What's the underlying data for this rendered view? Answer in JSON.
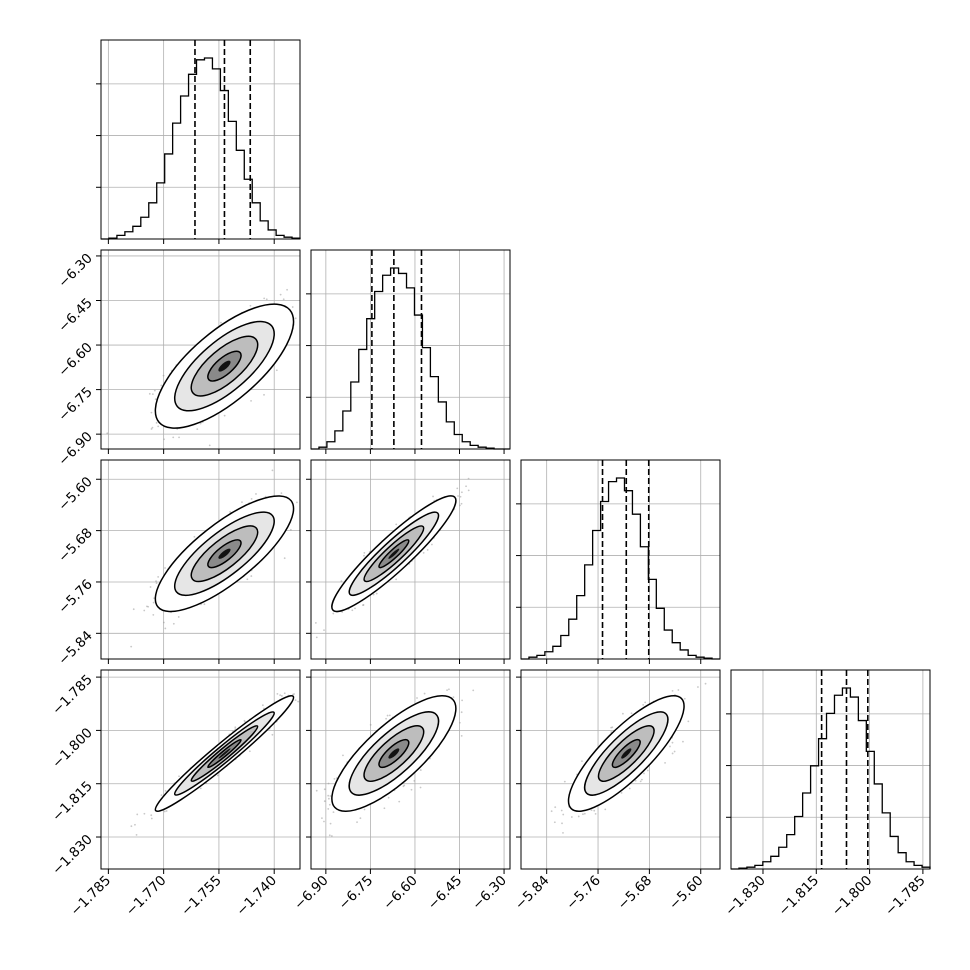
{
  "chart_data": {
    "type": "corner",
    "parameters": [
      {
        "range": [
          -1.787,
          -1.733
        ],
        "ticks": [
          -1.785,
          -1.77,
          -1.755,
          -1.74
        ],
        "tick_labels": [
          "−1.785",
          "−1.770",
          "−1.755",
          "−1.740"
        ],
        "quantiles": [
          -1.7615,
          -1.7535,
          -1.7465
        ],
        "hist": [
          0,
          0.005,
          0.02,
          0.04,
          0.07,
          0.12,
          0.2,
          0.31,
          0.47,
          0.64,
          0.79,
          0.91,
          0.99,
          1.0,
          0.94,
          0.82,
          0.65,
          0.49,
          0.33,
          0.2,
          0.1,
          0.05,
          0.02,
          0.01,
          0.005
        ]
      },
      {
        "range": [
          -6.95,
          -6.28
        ],
        "ticks": [
          -6.9,
          -6.75,
          -6.6,
          -6.45,
          -6.3
        ],
        "tick_labels": [
          "−6.90",
          "−6.75",
          "−6.60",
          "−6.45",
          "−6.30"
        ],
        "quantiles": [
          -6.745,
          -6.671,
          -6.578
        ],
        "hist": [
          0,
          0.01,
          0.04,
          0.1,
          0.21,
          0.37,
          0.55,
          0.72,
          0.87,
          0.96,
          1.0,
          0.97,
          0.89,
          0.74,
          0.56,
          0.4,
          0.26,
          0.15,
          0.08,
          0.04,
          0.02,
          0.01,
          0.005,
          0,
          0
        ]
      },
      {
        "range": [
          -5.88,
          -5.57
        ],
        "ticks": [
          -5.84,
          -5.76,
          -5.68,
          -5.6
        ],
        "tick_labels": [
          "−5.84",
          "−5.76",
          "−5.68",
          "−5.60"
        ],
        "quantiles": [
          -5.753,
          -5.716,
          -5.681
        ],
        "hist": [
          0,
          0.01,
          0.02,
          0.04,
          0.07,
          0.13,
          0.22,
          0.35,
          0.52,
          0.71,
          0.87,
          0.98,
          1.0,
          0.93,
          0.8,
          0.62,
          0.44,
          0.28,
          0.16,
          0.09,
          0.05,
          0.02,
          0.01,
          0.005,
          0
        ]
      },
      {
        "range": [
          -1.839,
          -1.783
        ],
        "ticks": [
          -1.83,
          -1.815,
          -1.8,
          -1.785
        ],
        "tick_labels": [
          "−1.830",
          "−1.815",
          "−1.800",
          "−1.785"
        ],
        "quantiles": [
          -1.8135,
          -1.8065,
          -1.8005
        ],
        "hist": [
          0,
          0.005,
          0.01,
          0.02,
          0.04,
          0.07,
          0.12,
          0.19,
          0.29,
          0.42,
          0.57,
          0.72,
          0.86,
          0.96,
          1.0,
          0.95,
          0.82,
          0.65,
          0.47,
          0.31,
          0.18,
          0.09,
          0.04,
          0.02,
          0.01
        ]
      }
    ],
    "correlations": [
      [
        1.0,
        0.72,
        0.78,
        0.97
      ],
      [
        0.72,
        1.0,
        0.92,
        0.78
      ],
      [
        0.78,
        0.92,
        1.0,
        0.82
      ],
      [
        0.97,
        0.78,
        0.82,
        1.0
      ]
    ],
    "title": "",
    "grid": true
  }
}
